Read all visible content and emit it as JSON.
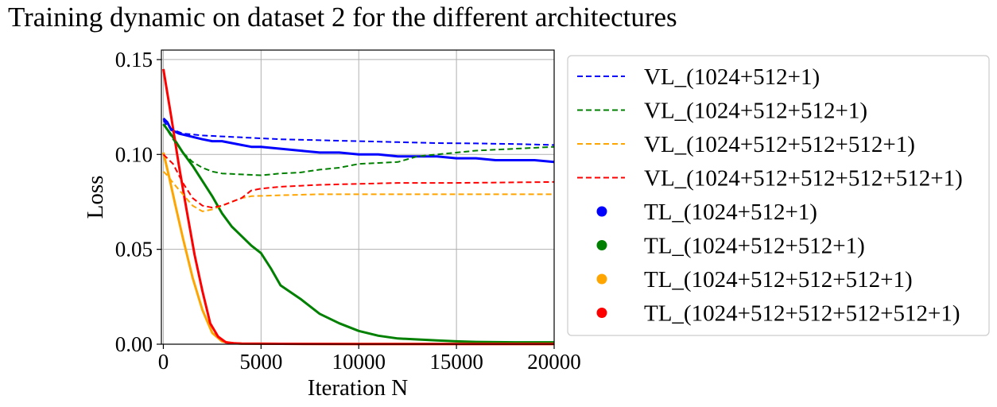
{
  "chart_data": {
    "type": "line",
    "title": "Training dynamic on dataset 2 for the different architectures",
    "xlabel": "Iteration N",
    "ylabel": "Loss",
    "xlim": [
      -100,
      20000
    ],
    "ylim": [
      0.0,
      0.155
    ],
    "xticks": [
      0,
      5000,
      10000,
      15000,
      20000
    ],
    "yticks": [
      0.0,
      0.05,
      0.1,
      0.15
    ],
    "xtick_labels": [
      "0",
      "5000",
      "10000",
      "15000",
      "20000"
    ],
    "ytick_labels": [
      "0.00",
      "0.05",
      "0.10",
      "0.15"
    ],
    "grid": true,
    "legend_position": "outside right",
    "series": [
      {
        "name": "VL_(1024+512+1)",
        "style": "dashed",
        "color": "#0000ff",
        "x": [
          0,
          200,
          500,
          1000,
          1500,
          2000,
          3000,
          4000,
          5000,
          6000,
          8000,
          10000,
          12000,
          14000,
          16000,
          18000,
          20000
        ],
        "y": [
          0.118,
          0.115,
          0.113,
          0.111,
          0.1105,
          0.11,
          0.1095,
          0.109,
          0.1085,
          0.108,
          0.1075,
          0.107,
          0.1065,
          0.106,
          0.1058,
          0.1055,
          0.105
        ]
      },
      {
        "name": "VL_(1024+512+512+1)",
        "style": "dashed",
        "color": "#008000",
        "x": [
          0,
          500,
          1000,
          1500,
          2000,
          2500,
          3000,
          4000,
          5000,
          6000,
          7000,
          8000,
          9000,
          10000,
          11000,
          12000,
          13000,
          14000,
          16000,
          18000,
          20000
        ],
        "y": [
          0.116,
          0.108,
          0.101,
          0.096,
          0.093,
          0.091,
          0.09,
          0.0895,
          0.089,
          0.09,
          0.0905,
          0.092,
          0.093,
          0.095,
          0.0955,
          0.096,
          0.099,
          0.1,
          0.102,
          0.103,
          0.104
        ]
      },
      {
        "name": "VL_(1024+512+512+512+1)",
        "style": "dashed",
        "color": "#ffa500",
        "x": [
          0,
          200,
          500,
          1000,
          1500,
          2000,
          2500,
          3000,
          4000,
          4500,
          6000,
          8000,
          10000,
          12000,
          15000,
          18000,
          20000
        ],
        "y": [
          0.091,
          0.089,
          0.085,
          0.079,
          0.073,
          0.07,
          0.071,
          0.073,
          0.077,
          0.078,
          0.0785,
          0.079,
          0.079,
          0.079,
          0.079,
          0.079,
          0.079
        ]
      },
      {
        "name": "VL_(1024+512+512+512+512+1)",
        "style": "dashed",
        "color": "#ff0000",
        "x": [
          0,
          500,
          1000,
          1500,
          2000,
          2500,
          3000,
          4000,
          4500,
          5000,
          6000,
          7000,
          8000,
          10000,
          12000,
          15000,
          18000,
          20000
        ],
        "y": [
          0.1,
          0.095,
          0.085,
          0.077,
          0.073,
          0.072,
          0.073,
          0.077,
          0.081,
          0.082,
          0.083,
          0.0835,
          0.084,
          0.0845,
          0.085,
          0.085,
          0.0853,
          0.0855
        ]
      },
      {
        "name": "TL_(1024+512+1)",
        "style": "solid",
        "color": "#0000ff",
        "x": [
          0,
          200,
          400,
          800,
          1200,
          1600,
          2000,
          2500,
          3000,
          3500,
          4000,
          4500,
          5000,
          6000,
          7000,
          8000,
          9000,
          10000,
          11000,
          12000,
          13000,
          14000,
          15000,
          16000,
          17000,
          18000,
          19000,
          20000
        ],
        "y": [
          0.119,
          0.117,
          0.113,
          0.111,
          0.11,
          0.109,
          0.108,
          0.107,
          0.107,
          0.106,
          0.105,
          0.104,
          0.104,
          0.103,
          0.102,
          0.101,
          0.101,
          0.1,
          0.1,
          0.099,
          0.099,
          0.099,
          0.098,
          0.098,
          0.097,
          0.097,
          0.097,
          0.096
        ]
      },
      {
        "name": "TL_(1024+512+512+1)",
        "style": "solid",
        "color": "#008000",
        "x": [
          0,
          500,
          1000,
          1500,
          2000,
          2500,
          3000,
          3500,
          4000,
          4500,
          5000,
          5500,
          6000,
          7000,
          8000,
          9000,
          10000,
          11000,
          12000,
          13000,
          14000,
          15000,
          16000,
          18000,
          20000
        ],
        "y": [
          0.116,
          0.109,
          0.101,
          0.094,
          0.086,
          0.078,
          0.069,
          0.062,
          0.057,
          0.052,
          0.048,
          0.04,
          0.031,
          0.024,
          0.016,
          0.011,
          0.007,
          0.0045,
          0.003,
          0.0025,
          0.002,
          0.0015,
          0.0012,
          0.001,
          0.001
        ]
      },
      {
        "name": "TL_(1024+512+512+512+1)",
        "style": "solid",
        "color": "#ffa500",
        "x": [
          0,
          300,
          600,
          1000,
          1500,
          2000,
          2500,
          3000,
          3500,
          4000,
          6000,
          10000,
          15000,
          20000
        ],
        "y": [
          0.101,
          0.088,
          0.074,
          0.056,
          0.035,
          0.018,
          0.006,
          0.0015,
          0.0005,
          0.0003,
          0.0002,
          0.0001,
          0.0001,
          0.0001
        ]
      },
      {
        "name": "TL_(1024+512+512+512+512+1)",
        "style": "solid",
        "color": "#ff0000",
        "x": [
          0,
          400,
          800,
          1200,
          1600,
          2000,
          2400,
          2800,
          3200,
          3600,
          4000,
          6000,
          10000,
          15000,
          20000
        ],
        "y": [
          0.145,
          0.12,
          0.094,
          0.07,
          0.047,
          0.028,
          0.011,
          0.004,
          0.001,
          0.0005,
          0.0003,
          0.0002,
          0.0001,
          0.0001,
          0.0001
        ]
      }
    ]
  }
}
